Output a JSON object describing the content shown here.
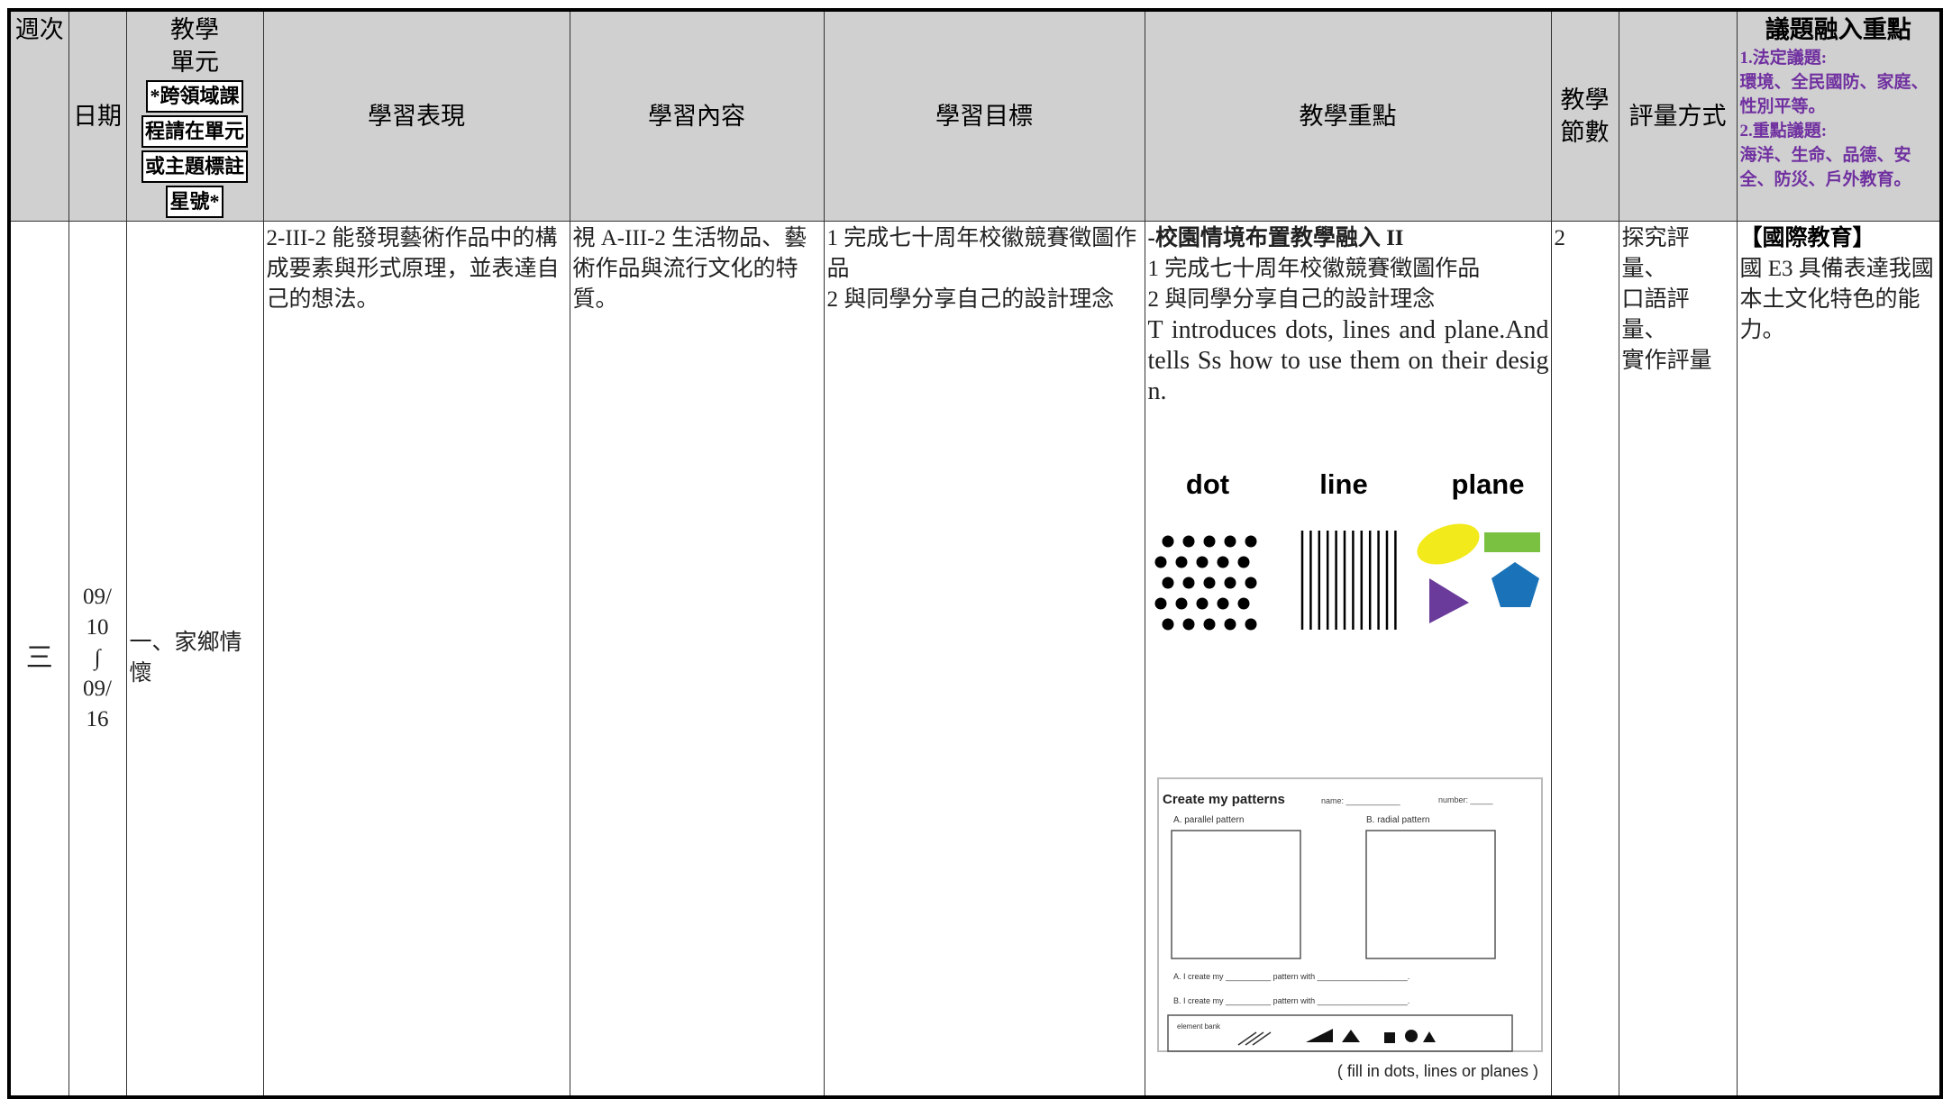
{
  "header": {
    "week": "週次",
    "date": "日期",
    "unit": {
      "lines": [
        "教學",
        "單元"
      ],
      "note_lines": [
        "*跨領域課",
        "程請在單元",
        "或主題標註",
        "星號*"
      ]
    },
    "performance": "學習表現",
    "content": "學習內容",
    "objectives": "學習目標",
    "focus": "教學重點",
    "hours": [
      "教學",
      "節數"
    ],
    "assessment": "評量方式",
    "issues": {
      "title": "議題融入重點",
      "lines": [
        "1.法定議題:",
        "環境、全民國防、家庭、性別平等。",
        "2.重點議題:",
        "海洋、生命、品德、安全、防災、戶外教育。"
      ]
    }
  },
  "row": {
    "week": "三",
    "date": [
      "09/",
      "10",
      "∫",
      "09/",
      "16"
    ],
    "unit": "一、家鄉情懷",
    "performance": "2-III-2 能發現藝術作品中的構成要素與形式原理，並表達自己的想法。",
    "content": "視 A-III-2 生活物品、藝術作品與流行文化的特質。",
    "objectives": [
      "1 完成七十周年校徽競賽徵圖作品",
      "2 與同學分享自己的設計理念"
    ],
    "focus": {
      "title": "-校園情境布置教學融入 II",
      "lines": [
        "1 完成七十周年校徽競賽徵圖作品",
        "2 與同學分享自己的設計理念"
      ],
      "english": "T introduces dots, lines and plane.And tells Ss how to use them on their design.",
      "figure": {
        "labels": [
          "dot",
          "line",
          "plane"
        ]
      },
      "worksheet": {
        "title": "Create my patterns",
        "name": "name: ____________",
        "number": "number: _____",
        "a_label": "A. parallel pattern",
        "b_label": "B. radial pattern",
        "a_line": "A. I create my __________ pattern with ____________________.",
        "b_line": "B. I create my __________ pattern with ____________________.",
        "bank": "element bank",
        "caption": "( fill in dots, lines or planes )"
      }
    },
    "hours": "2",
    "assessment": [
      "探究評量、",
      "口語評量、",
      "實作評量"
    ],
    "issues": {
      "title": "【國際教育】",
      "text": "國 E3 具備表達我國本土文化特色的能力。"
    }
  }
}
